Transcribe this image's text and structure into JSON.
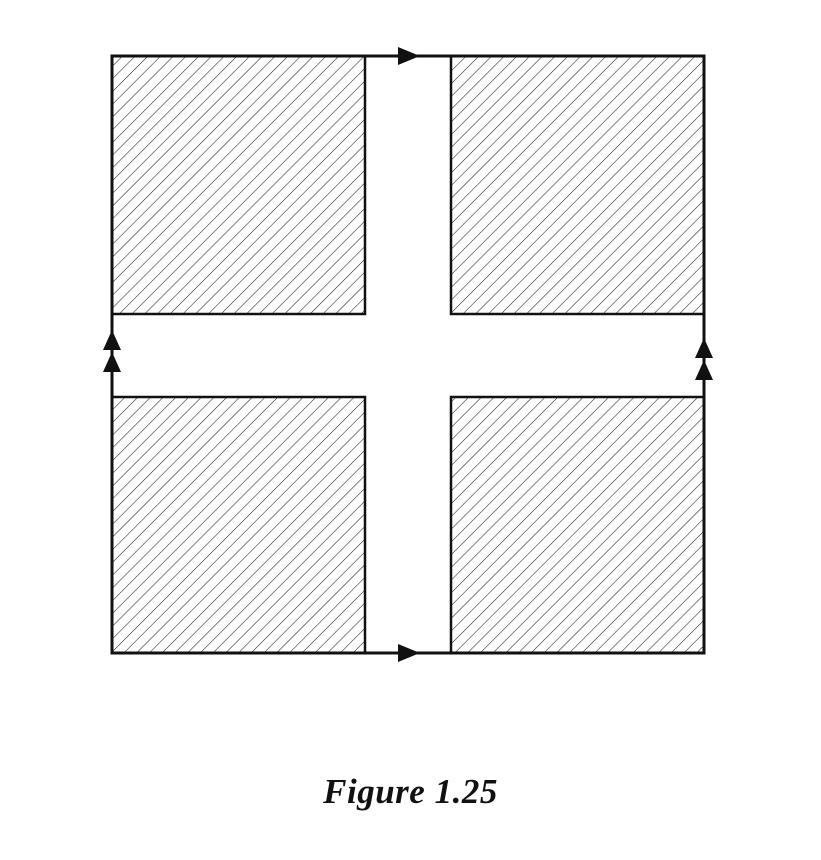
{
  "figure": {
    "caption": "Figure 1.25",
    "stroke_color": "#111111",
    "hatch_color": "#222222",
    "background_color": "#ffffff"
  }
}
